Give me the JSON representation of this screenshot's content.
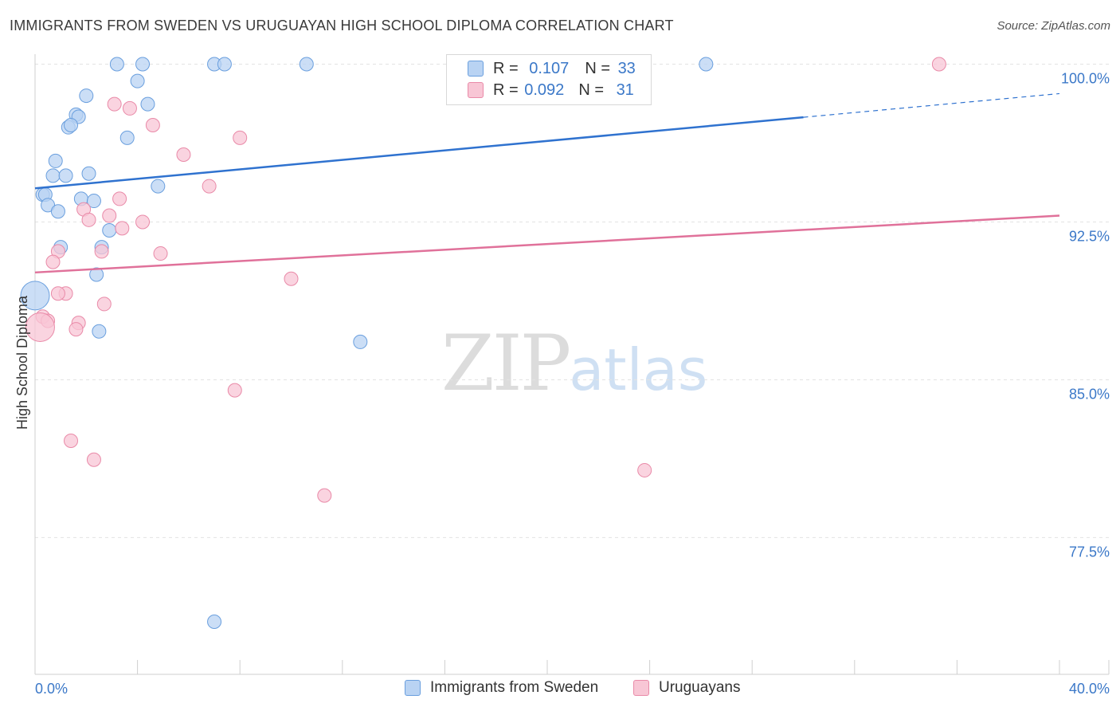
{
  "title": "IMMIGRANTS FROM SWEDEN VS URUGUAYAN HIGH SCHOOL DIPLOMA CORRELATION CHART",
  "source": "Source: ZipAtlas.com",
  "watermark": {
    "zip": "ZIP",
    "atlas": "atlas"
  },
  "legend_top": [
    {
      "r_label": "R =",
      "r_value": "0.107",
      "n_label": "N =",
      "n_value": "33"
    },
    {
      "r_label": "R =",
      "r_value": "0.092",
      "n_label": "N =",
      "n_value": "31"
    }
  ],
  "legend_bottom": [
    "Immigrants from Sweden",
    "Uruguayans"
  ],
  "colors": {
    "blue_fill": "#b9d3f3",
    "blue_stroke": "#6a9fde",
    "blue_line": "#2f72cf",
    "pink_fill": "#f8c6d5",
    "pink_stroke": "#e98aa8",
    "pink_line": "#e0719a",
    "axis_label": "#3b78c8",
    "grid": "#e3e3e3"
  },
  "chart_data": {
    "type": "scatter",
    "title": "IMMIGRANTS FROM SWEDEN VS URUGUAYAN HIGH SCHOOL DIPLOMA CORRELATION CHART",
    "xlabel": "",
    "ylabel": "High School Diploma",
    "xlim": [
      0,
      40
    ],
    "ylim": [
      71,
      100.7
    ],
    "x_tick_labels": [
      "0.0%",
      "40.0%"
    ],
    "y_ticks": [
      77.5,
      85.0,
      92.5,
      100.0
    ],
    "y_tick_labels": [
      "77.5%",
      "85.0%",
      "92.5%",
      "100.0%"
    ],
    "grid": true,
    "series": [
      {
        "name": "Immigrants from Sweden",
        "color": "#6a9fde",
        "points": [
          [
            3.2,
            100.0
          ],
          [
            4.2,
            100.0
          ],
          [
            7.0,
            100.0
          ],
          [
            7.4,
            100.0
          ],
          [
            10.6,
            100.0
          ],
          [
            26.2,
            100.0
          ],
          [
            4.0,
            99.2
          ],
          [
            2.0,
            98.5
          ],
          [
            4.4,
            98.1
          ],
          [
            1.6,
            97.6
          ],
          [
            1.7,
            97.5
          ],
          [
            1.3,
            97.0
          ],
          [
            1.4,
            97.1
          ],
          [
            3.6,
            96.5
          ],
          [
            0.8,
            95.4
          ],
          [
            0.7,
            94.7
          ],
          [
            1.2,
            94.7
          ],
          [
            2.1,
            94.8
          ],
          [
            4.8,
            94.2
          ],
          [
            0.3,
            93.8
          ],
          [
            0.4,
            93.8
          ],
          [
            1.8,
            93.6
          ],
          [
            2.3,
            93.5
          ],
          [
            0.5,
            93.3
          ],
          [
            0.9,
            93.0
          ],
          [
            2.9,
            92.1
          ],
          [
            1.0,
            91.3
          ],
          [
            2.6,
            91.3
          ],
          [
            2.4,
            90.0
          ],
          [
            0.0,
            89.0
          ],
          [
            2.5,
            87.3
          ],
          [
            12.7,
            86.8
          ],
          [
            7.0,
            73.5
          ]
        ],
        "trend": {
          "x": [
            0,
            40
          ],
          "y": [
            94.1,
            98.6
          ],
          "solid_until": 30
        }
      },
      {
        "name": "Uruguayans",
        "color": "#e98aa8",
        "points": [
          [
            35.3,
            100.0
          ],
          [
            3.1,
            98.1
          ],
          [
            3.7,
            97.9
          ],
          [
            4.6,
            97.1
          ],
          [
            8.0,
            96.5
          ],
          [
            5.8,
            95.7
          ],
          [
            6.8,
            94.2
          ],
          [
            3.3,
            93.6
          ],
          [
            1.9,
            93.1
          ],
          [
            2.9,
            92.8
          ],
          [
            2.1,
            92.6
          ],
          [
            4.2,
            92.5
          ],
          [
            3.4,
            92.2
          ],
          [
            2.6,
            91.1
          ],
          [
            0.9,
            91.1
          ],
          [
            4.9,
            91.0
          ],
          [
            0.7,
            90.6
          ],
          [
            10.0,
            89.8
          ],
          [
            1.2,
            89.1
          ],
          [
            0.9,
            89.1
          ],
          [
            2.7,
            88.6
          ],
          [
            0.3,
            88.0
          ],
          [
            0.5,
            87.8
          ],
          [
            1.7,
            87.7
          ],
          [
            1.6,
            87.4
          ],
          [
            0.2,
            87.5
          ],
          [
            7.8,
            84.5
          ],
          [
            1.4,
            82.1
          ],
          [
            2.3,
            81.2
          ],
          [
            23.8,
            80.7
          ],
          [
            11.3,
            79.5
          ]
        ],
        "trend": {
          "x": [
            0,
            40
          ],
          "y": [
            90.1,
            92.8
          ],
          "solid_until": 40
        }
      }
    ]
  }
}
